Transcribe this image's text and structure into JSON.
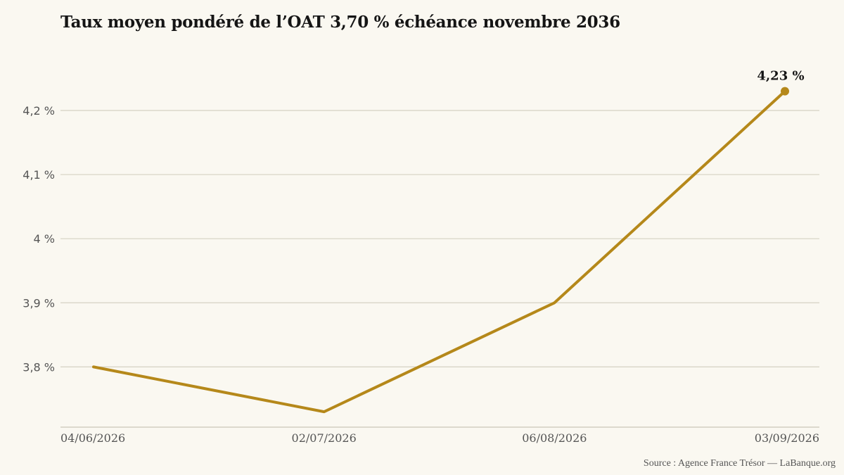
{
  "chart_data": {
    "type": "line",
    "title": "Taux moyen pondéré de l’OAT 3,70 % échéance novembre 2036",
    "xlabel": "",
    "ylabel": "",
    "categories": [
      "04/06/2026",
      "02/07/2026",
      "06/08/2026",
      "03/09/2026"
    ],
    "series": [
      {
        "values": [
          3.8,
          3.73,
          3.9,
          4.23
        ]
      }
    ],
    "yticks": [
      {
        "value": 3.8,
        "label": "3,8 %"
      },
      {
        "value": 3.9,
        "label": "3,9 %"
      },
      {
        "value": 4.0,
        "label": "4 %"
      },
      {
        "value": 4.1,
        "label": "4,1 %"
      },
      {
        "value": 4.2,
        "label": "4,2 %"
      }
    ],
    "ylim": [
      3.706,
      4.29
    ],
    "grid": true,
    "annotation": {
      "index": 3,
      "label": "4,23 %"
    },
    "colors": {
      "line": "#b5881a",
      "grid": "#d5d2c3",
      "axis": "#c9c6b8",
      "background": "#faf8f1"
    }
  },
  "source": "Source : Agence France Trésor — LaBanque.org"
}
